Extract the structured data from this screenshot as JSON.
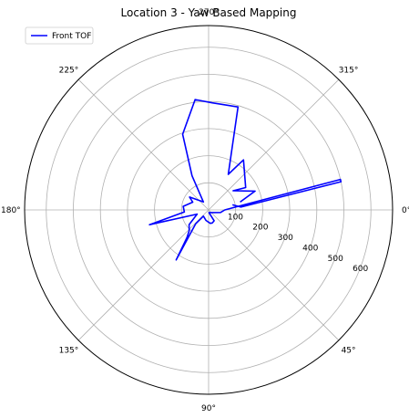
{
  "chart_data": {
    "type": "polar-line",
    "title": "Location 3 - Yaw Based Mapping",
    "theta_direction": "clockwise",
    "theta_zero": "east",
    "angle_ticks": [
      "0°",
      "45°",
      "90°",
      "135°",
      "180°",
      "225°",
      "270°",
      "315°"
    ],
    "radial_ticks": [
      "100",
      "200",
      "300",
      "400",
      "500",
      "600"
    ],
    "radial_tick_values": [
      100,
      200,
      300,
      400,
      500,
      600
    ],
    "rlim": [
      0,
      680
    ],
    "grid": true,
    "legend_position": "upper-left",
    "series": [
      {
        "name": "Front TOF",
        "color": "#0000ff",
        "points": [
          [
            346,
            120
          ],
          [
            338,
            185
          ],
          [
            322,
            115
          ],
          [
            329,
            160
          ],
          [
            305,
            225
          ],
          [
            299,
            150
          ],
          [
            286,
            395
          ],
          [
            272,
            395
          ],
          [
            263,
            410
          ],
          [
            251,
            295
          ],
          [
            244,
            140
          ],
          [
            237,
            35
          ],
          [
            214,
            85
          ],
          [
            206,
            65
          ],
          [
            188,
            95
          ],
          [
            175,
            90
          ],
          [
            166,
            225
          ],
          [
            160,
            45
          ],
          [
            143,
            90
          ],
          [
            133,
            105
          ],
          [
            128,
            130
          ],
          [
            123,
            220
          ],
          [
            133,
            70
          ],
          [
            130,
            30
          ],
          [
            104,
            40
          ],
          [
            83,
            50
          ],
          [
            74,
            50
          ],
          [
            63,
            45
          ],
          [
            82,
            10
          ],
          [
            12,
            45
          ],
          [
            0,
            60
          ],
          [
            347,
            500
          ],
          [
            348,
            500
          ],
          [
            355,
            120
          ],
          [
            348,
            90
          ]
        ]
      }
    ]
  }
}
